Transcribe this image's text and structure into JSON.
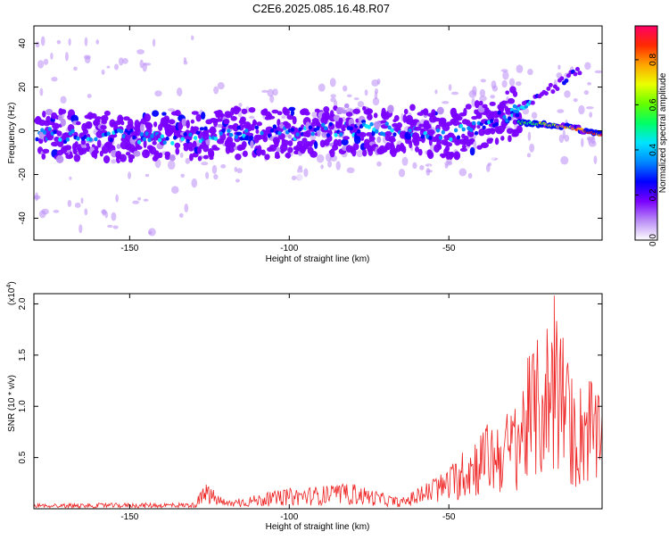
{
  "title": "C2E6.2025.085.16.48.R07",
  "chart_data": [
    {
      "type": "heatmap",
      "xlabel": "Height of straight line (km)",
      "ylabel": "Frequency (Hz)",
      "xlim": [
        -180,
        -2
      ],
      "ylim": [
        -50,
        48
      ],
      "xticks": [
        -150,
        -100,
        -50
      ],
      "yticks": [
        -40,
        -20,
        0,
        20,
        40
      ],
      "colorbar": {
        "label": "Normalized spectral amplitude",
        "range": [
          0.0,
          0.95
        ],
        "ticks": [
          "0.0",
          "0.2",
          "0.4",
          "0.6",
          "0.8"
        ],
        "colors": [
          "#ffffff",
          "#b98cf5",
          "#7a00ff",
          "#0000ff",
          "#0088ff",
          "#00e5ff",
          "#00ff66",
          "#66ff00",
          "#eaff00",
          "#ffa500",
          "#ff2a00",
          "#ff0066"
        ]
      },
      "ridge": [
        {
          "x": -178,
          "f": -2
        },
        {
          "x": -160,
          "f": -2
        },
        {
          "x": -140,
          "f": -3
        },
        {
          "x": -120,
          "f": -1
        },
        {
          "x": -100,
          "f": -1
        },
        {
          "x": -80,
          "f": 1
        },
        {
          "x": -60,
          "f": 0
        },
        {
          "x": -50,
          "f": -2
        },
        {
          "x": -40,
          "f": 2
        },
        {
          "x": -30,
          "f": 8
        },
        {
          "x": -25,
          "f": 12
        },
        {
          "x": -15,
          "f": 22
        },
        {
          "x": -10,
          "f": 27
        }
      ],
      "ridge_lower": [
        {
          "x": -28,
          "f": 4
        },
        {
          "x": -20,
          "f": 3
        },
        {
          "x": -10,
          "f": 1
        },
        {
          "x": -3,
          "f": -2
        }
      ]
    },
    {
      "type": "line",
      "xlabel": "Height of straight line (km)",
      "ylabel": "SNR (10 * v/v)",
      "multiplier": "(x10",
      "multiplier_exp": "4",
      "multiplier_close": ")",
      "xlim": [
        -180,
        -2
      ],
      "ylim": [
        0,
        2.1
      ],
      "xticks": [
        -150,
        -100,
        -50
      ],
      "yticks": [
        0.5,
        1.0,
        1.5,
        2.0
      ],
      "ytick_labels": [
        "0.5",
        "1.0",
        "1.5",
        "2.0"
      ],
      "color": "#ee2222",
      "envelope": [
        {
          "x": -180,
          "y": 0.05
        },
        {
          "x": -130,
          "y": 0.06
        },
        {
          "x": -126,
          "y": 0.25
        },
        {
          "x": -120,
          "y": 0.08
        },
        {
          "x": -100,
          "y": 0.2
        },
        {
          "x": -80,
          "y": 0.25
        },
        {
          "x": -65,
          "y": 0.1
        },
        {
          "x": -50,
          "y": 0.4
        },
        {
          "x": -40,
          "y": 0.8
        },
        {
          "x": -30,
          "y": 1.0
        },
        {
          "x": -25,
          "y": 1.5
        },
        {
          "x": -20,
          "y": 1.8
        },
        {
          "x": -17,
          "y": 2.08
        },
        {
          "x": -10,
          "y": 1.1
        },
        {
          "x": -7,
          "y": 1.45
        },
        {
          "x": -2,
          "y": 1.0
        }
      ]
    }
  ]
}
